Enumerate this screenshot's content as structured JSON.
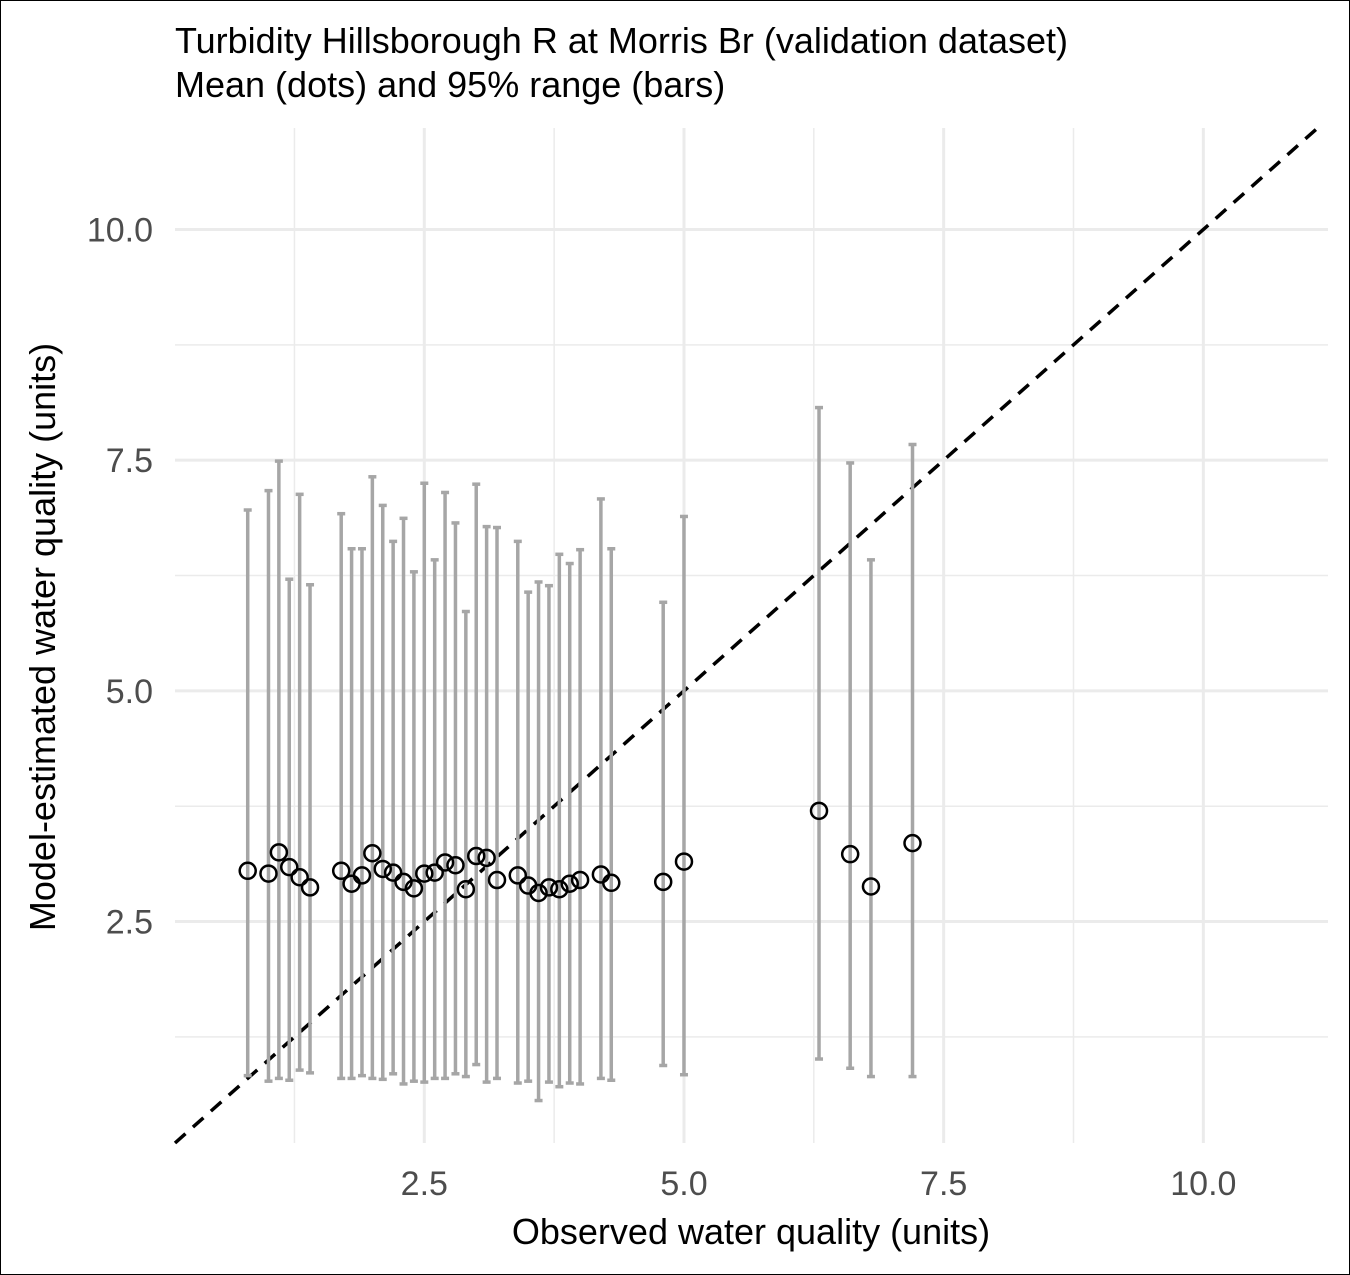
{
  "chart_data": {
    "type": "scatter",
    "title": "Turbidity Hillsborough R at Morris Br (validation dataset)",
    "subtitle": "Mean (dots) and 95% range (bars)",
    "xlabel": "Observed water quality (units)",
    "ylabel": "Model-estimated water quality (units)",
    "xlim": [
      0.1,
      11.2
    ],
    "ylim": [
      0.1,
      11.1
    ],
    "x_ticks": [
      2.5,
      5.0,
      7.5,
      10.0
    ],
    "y_ticks": [
      2.5,
      5.0,
      7.5,
      10.0
    ],
    "x_tick_labels": [
      "2.5",
      "5.0",
      "7.5",
      "10.0"
    ],
    "y_tick_labels": [
      "2.5",
      "5.0",
      "7.5",
      "10.0"
    ],
    "grid": true,
    "reference_line": {
      "slope": 1,
      "intercept": 0,
      "style": "dashed",
      "color": "#000000"
    },
    "colors": {
      "points": "#000000",
      "error_bars": "#a6a6a6",
      "grid": "#ebebeb"
    },
    "points": [
      {
        "x": 0.8,
        "y": 3.05,
        "lo": 0.83,
        "hi": 6.96
      },
      {
        "x": 1.0,
        "y": 3.02,
        "lo": 0.77,
        "hi": 7.17
      },
      {
        "x": 1.1,
        "y": 3.25,
        "lo": 0.8,
        "hi": 7.49
      },
      {
        "x": 1.2,
        "y": 3.09,
        "lo": 0.78,
        "hi": 6.21
      },
      {
        "x": 1.3,
        "y": 2.98,
        "lo": 0.89,
        "hi": 7.13
      },
      {
        "x": 1.4,
        "y": 2.87,
        "lo": 0.86,
        "hi": 6.15
      },
      {
        "x": 1.7,
        "y": 3.05,
        "lo": 0.8,
        "hi": 6.92
      },
      {
        "x": 1.8,
        "y": 2.91,
        "lo": 0.8,
        "hi": 6.54
      },
      {
        "x": 1.9,
        "y": 3.0,
        "lo": 0.83,
        "hi": 6.54
      },
      {
        "x": 2.0,
        "y": 3.24,
        "lo": 0.8,
        "hi": 7.32
      },
      {
        "x": 2.1,
        "y": 3.07,
        "lo": 0.79,
        "hi": 7.01
      },
      {
        "x": 2.2,
        "y": 3.03,
        "lo": 0.85,
        "hi": 6.62
      },
      {
        "x": 2.3,
        "y": 2.93,
        "lo": 0.74,
        "hi": 6.87
      },
      {
        "x": 2.4,
        "y": 2.86,
        "lo": 0.77,
        "hi": 6.29
      },
      {
        "x": 2.5,
        "y": 3.02,
        "lo": 0.76,
        "hi": 7.25
      },
      {
        "x": 2.6,
        "y": 3.03,
        "lo": 0.8,
        "hi": 6.42
      },
      {
        "x": 2.7,
        "y": 3.14,
        "lo": 0.8,
        "hi": 7.15
      },
      {
        "x": 2.8,
        "y": 3.11,
        "lo": 0.85,
        "hi": 6.82
      },
      {
        "x": 2.9,
        "y": 2.85,
        "lo": 0.82,
        "hi": 5.86
      },
      {
        "x": 3.0,
        "y": 3.21,
        "lo": 0.95,
        "hi": 7.24
      },
      {
        "x": 3.1,
        "y": 3.19,
        "lo": 0.76,
        "hi": 6.78
      },
      {
        "x": 3.2,
        "y": 2.95,
        "lo": 0.8,
        "hi": 6.77
      },
      {
        "x": 3.4,
        "y": 3.0,
        "lo": 0.75,
        "hi": 6.62
      },
      {
        "x": 3.5,
        "y": 2.89,
        "lo": 0.77,
        "hi": 6.07
      },
      {
        "x": 3.6,
        "y": 2.81,
        "lo": 0.56,
        "hi": 6.18
      },
      {
        "x": 3.7,
        "y": 2.87,
        "lo": 0.76,
        "hi": 6.14
      },
      {
        "x": 3.8,
        "y": 2.85,
        "lo": 0.71,
        "hi": 6.48
      },
      {
        "x": 3.9,
        "y": 2.91,
        "lo": 0.75,
        "hi": 6.38
      },
      {
        "x": 4.0,
        "y": 2.95,
        "lo": 0.74,
        "hi": 6.53
      },
      {
        "x": 4.2,
        "y": 3.01,
        "lo": 0.8,
        "hi": 7.08
      },
      {
        "x": 4.3,
        "y": 2.92,
        "lo": 0.78,
        "hi": 6.54
      },
      {
        "x": 4.8,
        "y": 2.93,
        "lo": 0.94,
        "hi": 5.96
      },
      {
        "x": 5.0,
        "y": 3.15,
        "lo": 0.84,
        "hi": 6.89
      },
      {
        "x": 6.3,
        "y": 3.7,
        "lo": 1.01,
        "hi": 8.07
      },
      {
        "x": 6.6,
        "y": 3.23,
        "lo": 0.91,
        "hi": 7.47
      },
      {
        "x": 6.8,
        "y": 2.88,
        "lo": 0.82,
        "hi": 6.42
      },
      {
        "x": 7.2,
        "y": 3.35,
        "lo": 0.82,
        "hi": 7.67
      }
    ]
  }
}
